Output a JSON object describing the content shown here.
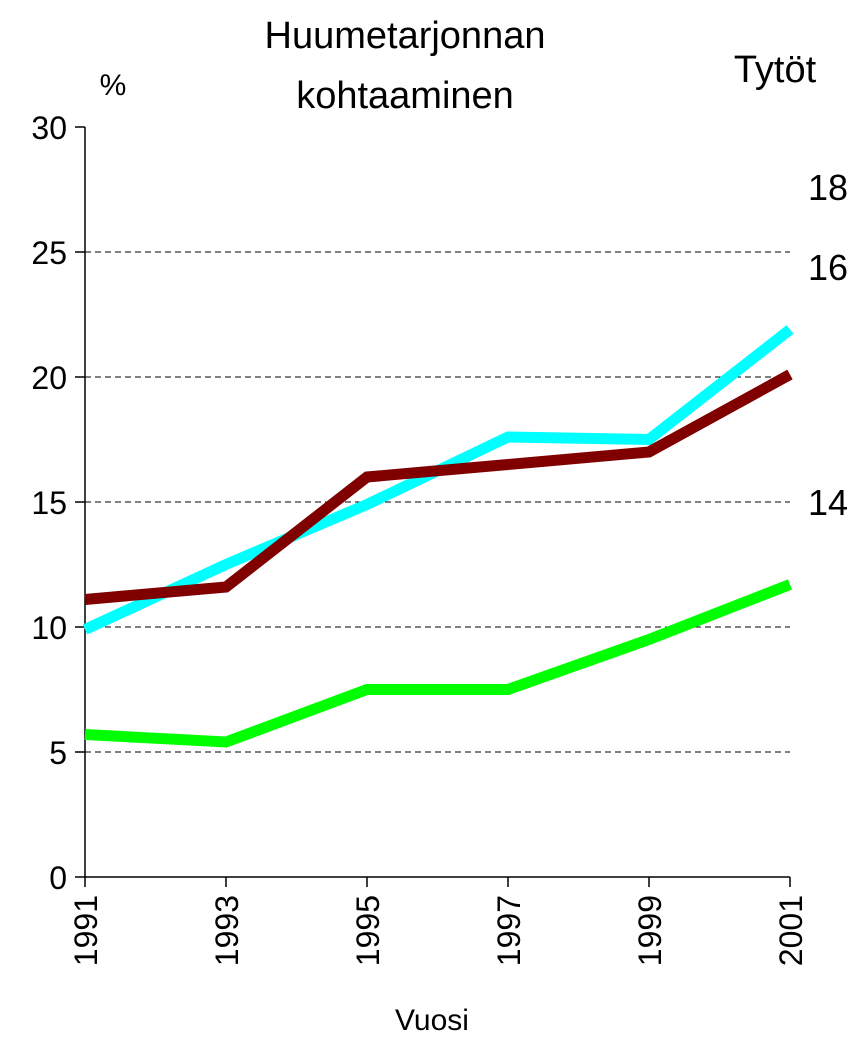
{
  "chart_data": {
    "type": "line",
    "title": [
      "Huumetarjonnan",
      "kohtaaminen"
    ],
    "subtitle": "Tytöt",
    "y_label": "%",
    "x_label": "Vuosi",
    "x": [
      1991,
      1993,
      1995,
      1997,
      1999,
      2001
    ],
    "xlim": [
      1991,
      2001
    ],
    "xticks": [
      1991,
      1993,
      1995,
      1997,
      1999,
      2001
    ],
    "ylim": [
      0,
      30
    ],
    "yticks": [
      0,
      5,
      10,
      15,
      20,
      25,
      30
    ],
    "grid": true,
    "series": [
      {
        "name": "18",
        "color": "#00ffff",
        "values": [
          9.9,
          12.5,
          14.9,
          17.6,
          17.5,
          21.9
        ]
      },
      {
        "name": "16",
        "color": "#800000",
        "values": [
          11.1,
          11.6,
          16.0,
          16.5,
          17.0,
          20.1
        ]
      },
      {
        "name": "14",
        "color": "#00ff00",
        "values": [
          5.7,
          5.4,
          7.5,
          7.5,
          9.5,
          11.7
        ]
      }
    ]
  }
}
